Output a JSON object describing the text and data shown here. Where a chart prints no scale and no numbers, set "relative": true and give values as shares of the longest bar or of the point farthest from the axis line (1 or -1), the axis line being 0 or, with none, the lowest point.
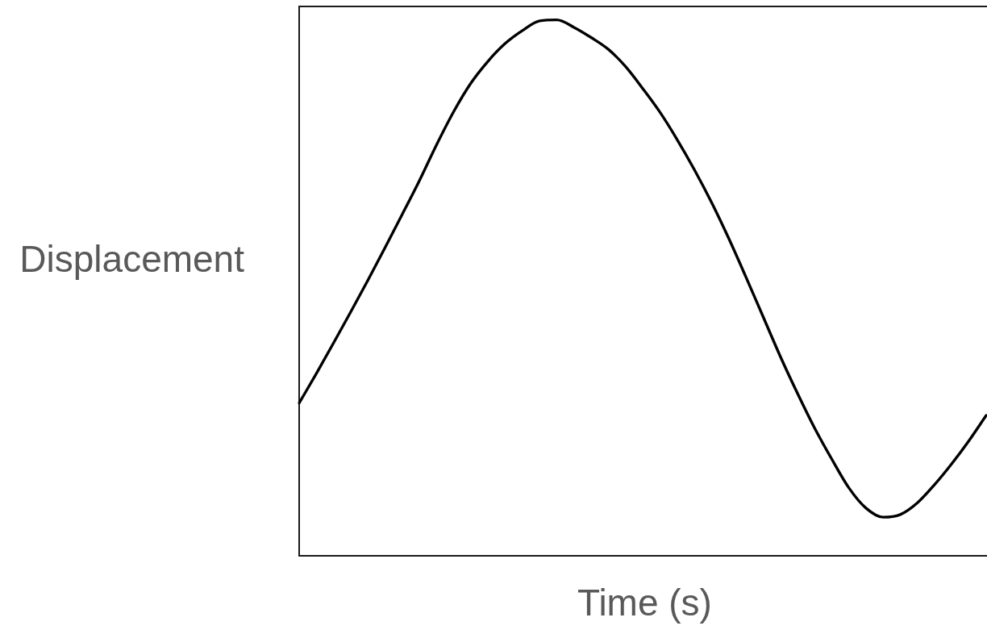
{
  "chart_data": {
    "type": "line",
    "xlabel": "Time (s)",
    "ylabel": "Displacement",
    "relative": true,
    "categories": [
      null,
      null,
      null,
      null,
      null,
      null,
      null,
      null,
      null,
      null,
      null,
      null,
      null,
      null,
      null,
      null,
      null,
      null,
      null,
      null,
      null,
      null,
      null,
      null,
      null,
      null,
      null,
      null,
      null,
      null,
      null,
      null,
      null,
      null,
      null,
      null,
      null,
      null,
      null,
      null,
      null
    ],
    "series": [
      {
        "color": "#000000",
        "values": [
          0.285,
          0.34,
          0.397,
          0.455,
          0.514,
          0.575,
          0.637,
          0.7,
          0.767,
          0.829,
          0.882,
          0.923,
          0.956,
          0.98,
          0.998,
          1,
          0.986,
          0.967,
          0.945,
          0.913,
          0.872,
          0.828,
          0.777,
          0.721,
          0.66,
          0.593,
          0.521,
          0.447,
          0.373,
          0.304,
          0.239,
          0.181,
          0.127,
          0.089,
          0.072,
          0.077,
          0.099,
          0.133,
          0.172,
          0.215,
          0.262
        ]
      }
    ]
  }
}
